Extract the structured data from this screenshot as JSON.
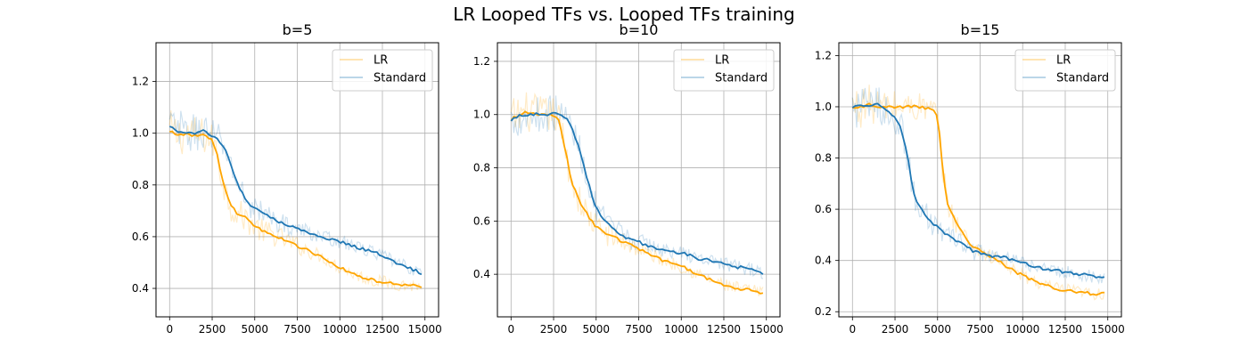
{
  "figure": {
    "title": "LR Looped TFs vs. Looped TFs training"
  },
  "colors": {
    "LR": "#ffa500",
    "Standard": "#1f77b4",
    "grid": "#b0b0b0"
  },
  "chart_data": [
    {
      "type": "line",
      "title": "b=5",
      "xlabel": "",
      "ylabel": "",
      "xlim": [
        -800,
        15800
      ],
      "ylim": [
        0.29,
        1.35
      ],
      "xticks": [
        0,
        2500,
        5000,
        7500,
        10000,
        12500,
        15000
      ],
      "yticks": [
        0.4,
        0.6,
        0.8,
        1.0,
        1.2
      ],
      "ytick_labels": [
        "0.4",
        "0.6",
        "0.8",
        "1.0",
        "1.2"
      ],
      "grid": true,
      "legend": "top-right",
      "series": [
        {
          "name": "LR",
          "x": [
            0,
            500,
            1000,
            1500,
            2000,
            2500,
            2800,
            3000,
            3300,
            3600,
            4000,
            4500,
            5000,
            5500,
            6000,
            7000,
            8000,
            9000,
            10000,
            11000,
            12000,
            13000,
            14000,
            14800
          ],
          "y": [
            1.01,
            0.99,
            1.0,
            0.99,
            0.99,
            0.97,
            0.92,
            0.85,
            0.77,
            0.72,
            0.69,
            0.67,
            0.64,
            0.62,
            0.61,
            0.58,
            0.55,
            0.52,
            0.48,
            0.45,
            0.43,
            0.42,
            0.41,
            0.41
          ]
        },
        {
          "name": "Standard",
          "x": [
            0,
            500,
            1000,
            1500,
            2000,
            2500,
            2800,
            3000,
            3300,
            3600,
            4000,
            4500,
            5000,
            5500,
            6000,
            7000,
            8000,
            9000,
            10000,
            11000,
            12000,
            13000,
            14000,
            14800
          ],
          "y": [
            1.03,
            1.01,
            1.0,
            1.0,
            1.01,
            0.99,
            0.98,
            0.96,
            0.93,
            0.88,
            0.8,
            0.74,
            0.71,
            0.69,
            0.67,
            0.64,
            0.62,
            0.6,
            0.58,
            0.56,
            0.54,
            0.51,
            0.48,
            0.46
          ]
        }
      ]
    },
    {
      "type": "line",
      "title": "b=10",
      "xlabel": "",
      "ylabel": "",
      "xlim": [
        -800,
        15800
      ],
      "ylim": [
        0.24,
        1.27
      ],
      "xticks": [
        0,
        2500,
        5000,
        7500,
        10000,
        12500,
        15000
      ],
      "yticks": [
        0.4,
        0.6,
        0.8,
        1.0,
        1.2
      ],
      "ytick_labels": [
        "0.4",
        "0.6",
        "0.8",
        "1.0",
        "1.2"
      ],
      "grid": true,
      "legend": "top-right",
      "series": [
        {
          "name": "LR",
          "x": [
            0,
            500,
            1000,
            1500,
            2000,
            2500,
            2800,
            3000,
            3300,
            3600,
            4000,
            4500,
            5000,
            5500,
            6000,
            7000,
            8000,
            9000,
            10000,
            11000,
            12000,
            13000,
            14000,
            14800
          ],
          "y": [
            0.98,
            1.0,
            1.01,
            1.0,
            1.0,
            1.0,
            0.98,
            0.93,
            0.83,
            0.74,
            0.68,
            0.62,
            0.58,
            0.56,
            0.54,
            0.51,
            0.48,
            0.45,
            0.43,
            0.4,
            0.37,
            0.35,
            0.34,
            0.33
          ]
        },
        {
          "name": "Standard",
          "x": [
            0,
            500,
            1000,
            1500,
            2000,
            2500,
            2800,
            3000,
            3300,
            3600,
            4000,
            4500,
            5000,
            5500,
            6000,
            7000,
            8000,
            9000,
            10000,
            11000,
            12000,
            13000,
            14000,
            14800
          ],
          "y": [
            0.98,
            1.0,
            1.0,
            1.0,
            1.0,
            1.01,
            1.0,
            1.0,
            0.98,
            0.94,
            0.88,
            0.75,
            0.65,
            0.6,
            0.57,
            0.53,
            0.51,
            0.49,
            0.48,
            0.46,
            0.45,
            0.43,
            0.42,
            0.4
          ]
        }
      ]
    },
    {
      "type": "line",
      "title": "b=15",
      "xlabel": "",
      "ylabel": "",
      "xlim": [
        -800,
        15800
      ],
      "ylim": [
        0.18,
        1.25
      ],
      "xticks": [
        0,
        2500,
        5000,
        7500,
        10000,
        12500,
        15000
      ],
      "yticks": [
        0.2,
        0.4,
        0.6,
        0.8,
        1.0,
        1.2
      ],
      "ytick_labels": [
        "0.2",
        "0.4",
        "0.6",
        "0.8",
        "1.0",
        "1.2"
      ],
      "grid": true,
      "legend": "top-right",
      "series": [
        {
          "name": "LR",
          "x": [
            0,
            500,
            1000,
            1500,
            2000,
            2500,
            3000,
            3500,
            4000,
            4500,
            4900,
            5100,
            5300,
            5600,
            6000,
            6500,
            7000,
            8000,
            9000,
            10000,
            11000,
            12000,
            13000,
            14000,
            14800
          ],
          "y": [
            1.0,
            1.0,
            1.01,
            1.0,
            1.0,
            1.0,
            1.0,
            1.0,
            1.0,
            0.99,
            0.98,
            0.9,
            0.75,
            0.62,
            0.56,
            0.5,
            0.46,
            0.42,
            0.38,
            0.34,
            0.31,
            0.29,
            0.28,
            0.27,
            0.27
          ]
        },
        {
          "name": "Standard",
          "x": [
            0,
            500,
            1000,
            1500,
            2000,
            2500,
            2800,
            3000,
            3300,
            3600,
            4000,
            4500,
            5000,
            5500,
            6000,
            6500,
            7000,
            8000,
            9000,
            10000,
            11000,
            12000,
            13000,
            14000,
            14800
          ],
          "y": [
            1.0,
            1.0,
            1.0,
            1.01,
            0.99,
            0.96,
            0.92,
            0.88,
            0.78,
            0.66,
            0.6,
            0.56,
            0.53,
            0.5,
            0.48,
            0.46,
            0.44,
            0.42,
            0.41,
            0.39,
            0.37,
            0.36,
            0.35,
            0.34,
            0.33
          ]
        }
      ]
    }
  ]
}
